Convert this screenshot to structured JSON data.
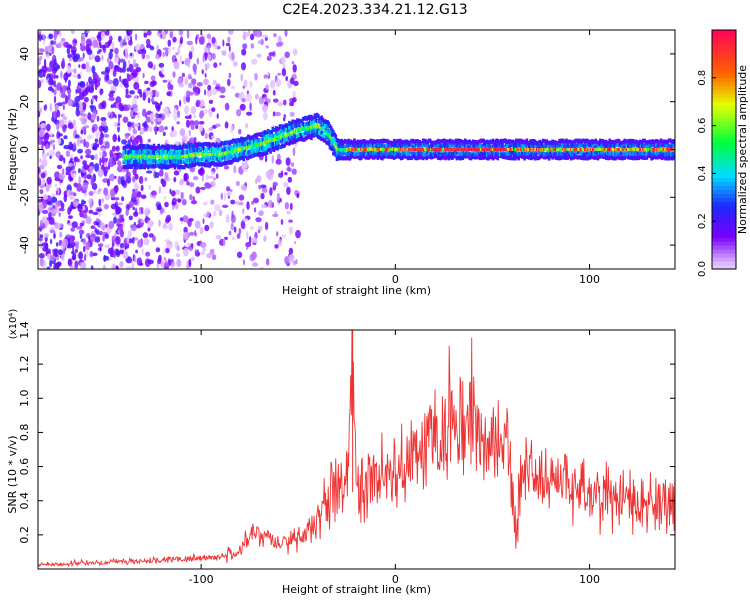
{
  "title": "C2E4.2023.334.21.12.G13",
  "chart_data": [
    {
      "type": "heatmap",
      "xlabel": "Height of straight line (km)",
      "ylabel": "Frequency (Hz)",
      "xlim": [
        -184,
        144
      ],
      "ylim": [
        -50,
        50
      ],
      "x_ticks": [
        -100,
        0,
        100
      ],
      "y_ticks": [
        -40,
        -20,
        0,
        20,
        40
      ],
      "signal_ridge": {
        "x": [
          -140,
          -130,
          -120,
          -110,
          -100,
          -90,
          -80,
          -70,
          -60,
          -50,
          -40,
          -35,
          -30,
          -20,
          0,
          50,
          100,
          144
        ],
        "frequency_hz": [
          -3,
          -3,
          -3,
          -3,
          -2,
          -2,
          0,
          2,
          5,
          8,
          10,
          7,
          0,
          0,
          0,
          0,
          0,
          0
        ]
      },
      "colorbar": {
        "label": "Normalized spectral amplitude",
        "range": [
          0.0,
          1.0
        ],
        "ticks": [
          0.0,
          0.2,
          0.4,
          0.6,
          0.8
        ]
      }
    },
    {
      "type": "line",
      "xlabel": "Height of straight line (km)",
      "ylabel": "SNR (10 * v/v)",
      "y_multiplier_label": "(x10⁴)",
      "xlim": [
        -184,
        144
      ],
      "ylim": [
        0,
        1.4
      ],
      "x_ticks": [
        -100,
        0,
        100
      ],
      "y_ticks": [
        0.2,
        0.4,
        0.6,
        0.8,
        1.0,
        1.2,
        1.4
      ],
      "series": [
        {
          "color": "#ee3333",
          "x": [
            -184,
            -170,
            -160,
            -150,
            -140,
            -130,
            -120,
            -110,
            -100,
            -90,
            -80,
            -75,
            -70,
            -60,
            -50,
            -40,
            -37,
            -35,
            -30,
            -25,
            -22,
            -20,
            -10,
            0,
            5,
            10,
            20,
            25,
            30,
            35,
            40,
            45,
            50,
            55,
            60,
            62,
            65,
            70,
            80,
            90,
            100,
            110,
            120,
            130,
            144
          ],
          "values": [
            0.03,
            0.03,
            0.04,
            0.04,
            0.05,
            0.05,
            0.06,
            0.06,
            0.07,
            0.08,
            0.12,
            0.22,
            0.2,
            0.16,
            0.18,
            0.3,
            0.45,
            0.42,
            0.5,
            0.55,
            1.42,
            0.5,
            0.6,
            0.62,
            0.65,
            0.72,
            0.85,
            0.8,
            1.05,
            0.88,
            0.95,
            0.82,
            0.85,
            0.78,
            0.65,
            0.2,
            0.6,
            0.62,
            0.52,
            0.5,
            0.48,
            0.46,
            0.42,
            0.44,
            0.4
          ]
        }
      ]
    }
  ]
}
